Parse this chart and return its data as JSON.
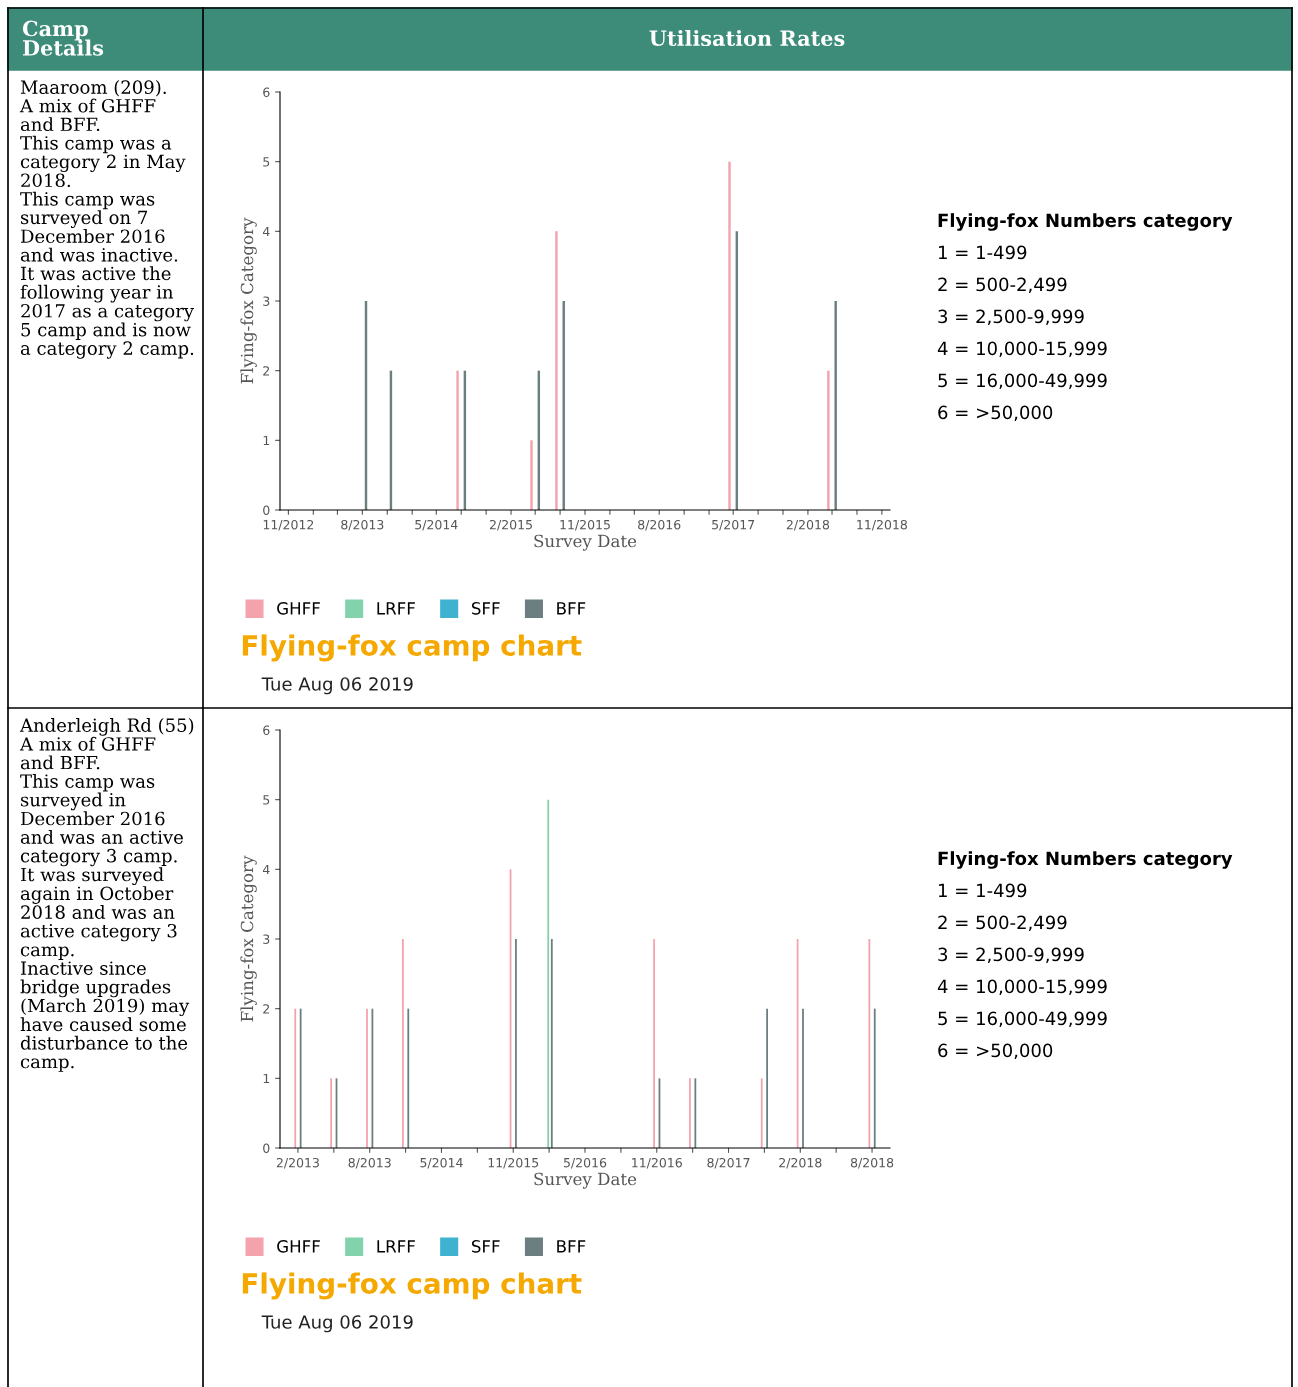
{
  "chart_data": [
    {
      "type": "other",
      "title": "Utilisation Rates",
      "annotations": [
        "Camp Details"
      ]
    },
    {
      "type": "bar",
      "title": "Flying-fox camp chart",
      "subtitle": "Tue Aug 06 2019",
      "xlabel": "Survey Date",
      "ylabel": "Flying-fox Category",
      "x": [
        "2013-08",
        "2013-11",
        "2014-08",
        "2015-05",
        "2015-08",
        "2017-05",
        "2018-05"
      ],
      "series": [
        {
          "name": "GHFF",
          "color": "#f4a3ad",
          "values": [
            null,
            null,
            2,
            1,
            4,
            5,
            2
          ]
        },
        {
          "name": "LRFF",
          "color": "#82d3ad",
          "values": [
            null,
            null,
            null,
            null,
            null,
            null,
            null
          ]
        },
        {
          "name": "SFF",
          "color": "#3fb2cf",
          "values": [
            null,
            null,
            null,
            null,
            null,
            null,
            null
          ]
        },
        {
          "name": "BFF",
          "color": "#6b7e80",
          "values": [
            3,
            2,
            2,
            2,
            3,
            4,
            3
          ]
        }
      ],
      "xlim": [
        "2012-10",
        "2018-12"
      ],
      "xticks": [
        {
          "value": "2012-11",
          "label": "11/2012"
        },
        {
          "value": "2013-02",
          "label": null
        },
        {
          "value": "2013-05",
          "label": null
        },
        {
          "value": "2013-08",
          "label": "8/2013"
        },
        {
          "value": "2013-11",
          "label": null
        },
        {
          "value": "2014-02",
          "label": null
        },
        {
          "value": "2014-05",
          "label": "5/2014"
        },
        {
          "value": "2014-08",
          "label": null
        },
        {
          "value": "2014-11",
          "label": null
        },
        {
          "value": "2015-02",
          "label": "2/2015"
        },
        {
          "value": "2015-05",
          "label": null
        },
        {
          "value": "2015-08",
          "label": null
        },
        {
          "value": "2015-11",
          "label": "11/2015"
        },
        {
          "value": "2016-02",
          "label": null
        },
        {
          "value": "2016-05",
          "label": null
        },
        {
          "value": "2016-08",
          "label": "8/2016"
        },
        {
          "value": "2016-11",
          "label": null
        },
        {
          "value": "2017-02",
          "label": null
        },
        {
          "value": "2017-05",
          "label": "5/2017"
        },
        {
          "value": "2017-08",
          "label": null
        },
        {
          "value": "2017-11",
          "label": null
        },
        {
          "value": "2018-02",
          "label": "2/2018"
        },
        {
          "value": "2018-05",
          "label": null
        },
        {
          "value": "2018-08",
          "label": null
        },
        {
          "value": "2018-11",
          "label": "11/2018"
        }
      ],
      "ylim": [
        0,
        6
      ],
      "yticks": [
        0,
        1,
        2,
        3,
        4,
        5,
        6
      ],
      "grid": false,
      "legend": "bottom",
      "annotations": [
        "Maaroom (209).\nA mix of GHFF and BFF.\nThis camp was a category 2 in May 2018.\nThis camp was surveyed on 7 December 2016 and was inactive. It was active the following year in 2017 as a category 5 camp and is now a category 2 camp.",
        "Flying-fox Numbers category",
        "1 = 1-499",
        "2 = 500-2,499",
        "3 = 2,500-9,999",
        "4 = 10,000-15,999",
        "5 = 16,000-49,999",
        "6 = >50,000"
      ]
    },
    {
      "type": "bar",
      "title": "Flying-fox camp chart",
      "subtitle": "Tue Aug 06 2019",
      "xlabel": "Survey Date",
      "ylabel": "Flying-fox Category",
      "categories": [
        "2/2013",
        null,
        "8/2013",
        null,
        "5/2014",
        null,
        "11/2015",
        null,
        "5/2016",
        null,
        "11/2016",
        null,
        "8/2017",
        null,
        "2/2018",
        null,
        "8/2018"
      ],
      "series": [
        {
          "name": "GHFF",
          "color": "#f4a3ad",
          "values": [
            2,
            1,
            2,
            3,
            null,
            null,
            4,
            null,
            null,
            null,
            3,
            1,
            null,
            1,
            3,
            null,
            3
          ]
        },
        {
          "name": "LRFF",
          "color": "#82d3ad",
          "values": [
            null,
            null,
            null,
            null,
            null,
            null,
            null,
            5,
            null,
            null,
            null,
            null,
            null,
            null,
            null,
            null,
            null
          ]
        },
        {
          "name": "SFF",
          "color": "#3fb2cf",
          "values": [
            null,
            null,
            null,
            null,
            null,
            null,
            null,
            null,
            null,
            null,
            null,
            null,
            null,
            null,
            null,
            null,
            null
          ]
        },
        {
          "name": "BFF",
          "color": "#6b7e80",
          "values": [
            2,
            1,
            2,
            2,
            null,
            null,
            3,
            3,
            null,
            null,
            1,
            1,
            null,
            2,
            2,
            null,
            2
          ]
        }
      ],
      "ylim": [
        0,
        6
      ],
      "yticks": [
        0,
        1,
        2,
        3,
        4,
        5,
        6
      ],
      "grid": false,
      "legend": "bottom",
      "annotations": [
        "Anderleigh Rd (55)\nA mix of GHFF and BFF.\nThis camp was surveyed in December 2016 and was an active category 3 camp. It was surveyed again in October 2018 and was an active category 3 camp.\nInactive since bridge upgrades (March 2019) may have caused some disturbance to the camp.",
        "Flying-fox Numbers category",
        "1 = 1-499",
        "2 = 500-2,499",
        "3 = 2,500-9,999",
        "4 = 10,000-15,999",
        "5 = 16,000-49,999",
        "6 = >50,000"
      ]
    }
  ]
}
